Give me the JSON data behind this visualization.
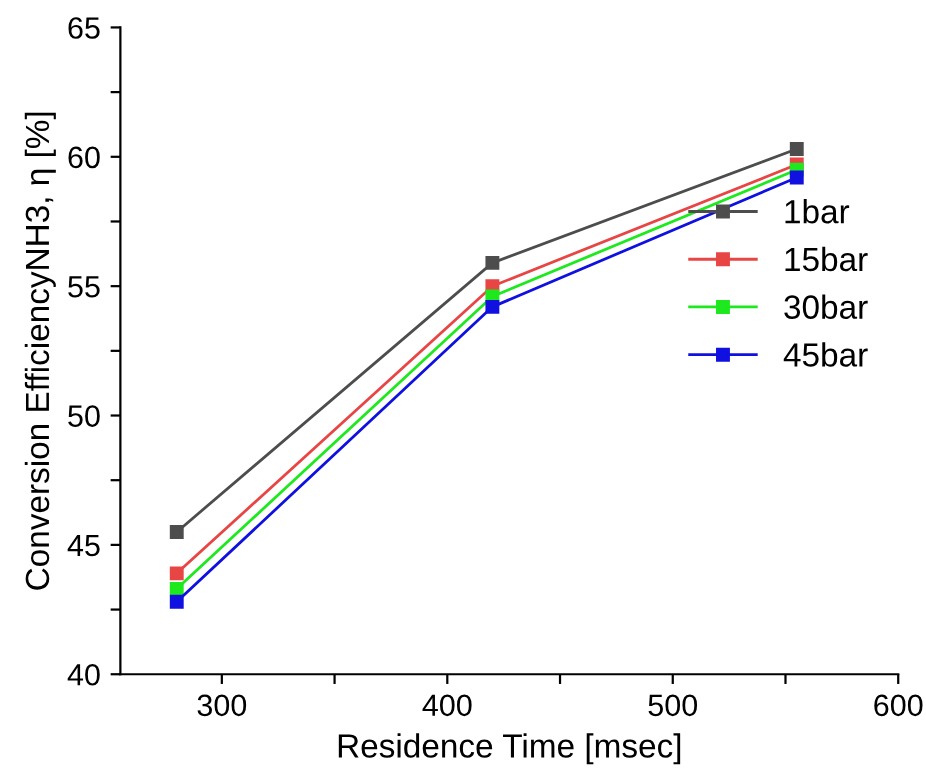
{
  "chart_data": {
    "type": "line",
    "xlabel": "Residence Time [msec]",
    "ylabel": "Conversion EfficiencyNH3, η [%]",
    "x": [
      280,
      420,
      555
    ],
    "series": [
      {
        "name": "1bar",
        "color": "#4d4d4d",
        "values": [
          45.5,
          55.9,
          60.3
        ]
      },
      {
        "name": "15bar",
        "color": "#e84545",
        "values": [
          43.9,
          55.0,
          59.7
        ]
      },
      {
        "name": "30bar",
        "color": "#1ee81e",
        "values": [
          43.3,
          54.6,
          59.5
        ]
      },
      {
        "name": "45bar",
        "color": "#1010e0",
        "values": [
          42.8,
          54.2,
          59.2
        ]
      }
    ],
    "xlim": [
      255,
      600
    ],
    "xticks": [
      300,
      {
        "value": 350,
        "label": null
      },
      400,
      {
        "value": 450,
        "label": null
      },
      500,
      {
        "value": 550,
        "label": null
      },
      600
    ],
    "ylim": [
      40,
      65
    ],
    "yticks": [
      40,
      {
        "value": 42.5,
        "label": null
      },
      45,
      {
        "value": 47.5,
        "label": null
      },
      50,
      {
        "value": 52.5,
        "label": null
      },
      55,
      {
        "value": 57.5,
        "label": null
      },
      60,
      {
        "value": 62.5,
        "label": null
      },
      65
    ],
    "marker": "square",
    "line_style": "solid",
    "grid": false,
    "legend": "right"
  }
}
